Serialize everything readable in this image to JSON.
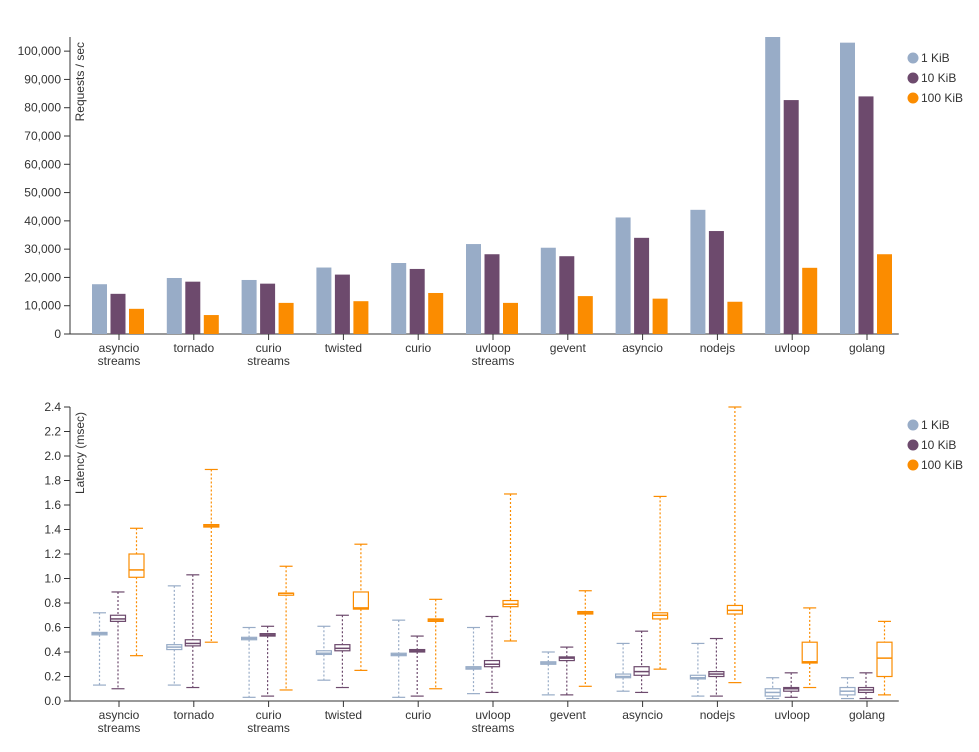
{
  "colors": {
    "s1": "#98acc7",
    "s2": "#6d4a6d",
    "s3": "#fb8c00",
    "axis": "#333333"
  },
  "chart_data": [
    {
      "type": "bar",
      "ylabel": "Requests / sec",
      "ylim": [
        0,
        105000
      ],
      "yticks": [
        0,
        10000,
        20000,
        30000,
        40000,
        50000,
        60000,
        70000,
        80000,
        90000,
        100000
      ],
      "ytick_labels": [
        "0",
        "10,000",
        "20,000",
        "30,000",
        "40,000",
        "50,000",
        "60,000",
        "70,000",
        "80,000",
        "90,000",
        "100,000"
      ],
      "categories": [
        [
          "asyncio",
          "streams"
        ],
        [
          "tornado"
        ],
        [
          "curio",
          "streams"
        ],
        [
          "twisted"
        ],
        [
          "curio"
        ],
        [
          "uvloop",
          "streams"
        ],
        [
          "gevent"
        ],
        [
          "asyncio"
        ],
        [
          "nodejs"
        ],
        [
          "uvloop"
        ],
        [
          "golang"
        ]
      ],
      "legend_position": "top-right",
      "series": [
        {
          "name": "1 KiB",
          "values": [
            17600,
            19800,
            19100,
            23500,
            25100,
            31800,
            30500,
            41200,
            43900,
            105000,
            103000
          ]
        },
        {
          "name": "10 KiB",
          "values": [
            14200,
            18500,
            17800,
            21000,
            23000,
            28200,
            27500,
            34000,
            36400,
            82700,
            84000
          ]
        },
        {
          "name": "100 KiB",
          "values": [
            8900,
            6700,
            11000,
            11600,
            14500,
            11000,
            13400,
            12500,
            11400,
            23400,
            28200
          ]
        }
      ]
    },
    {
      "type": "boxplot",
      "ylabel": "Latency (msec)",
      "ylim": [
        0,
        2.4
      ],
      "yticks": [
        0,
        0.2,
        0.4,
        0.6,
        0.8,
        1.0,
        1.2,
        1.4,
        1.6,
        1.8,
        2.0,
        2.2,
        2.4
      ],
      "ytick_labels": [
        "0.0",
        "0.2",
        "0.4",
        "0.6",
        "0.8",
        "1.0",
        "1.2",
        "1.4",
        "1.6",
        "1.8",
        "2.0",
        "2.2",
        "2.4"
      ],
      "categories": [
        [
          "asyncio",
          "streams"
        ],
        [
          "tornado"
        ],
        [
          "curio",
          "streams"
        ],
        [
          "twisted"
        ],
        [
          "curio"
        ],
        [
          "uvloop",
          "streams"
        ],
        [
          "gevent"
        ],
        [
          "asyncio"
        ],
        [
          "nodejs"
        ],
        [
          "uvloop"
        ],
        [
          "golang"
        ]
      ],
      "legend_position": "top-right",
      "series": [
        {
          "name": "1 KiB",
          "boxes": [
            {
              "min": 0.13,
              "q1": 0.54,
              "median": 0.55,
              "q3": 0.56,
              "max": 0.72
            },
            {
              "min": 0.13,
              "q1": 0.42,
              "median": 0.44,
              "q3": 0.46,
              "max": 0.94
            },
            {
              "min": 0.03,
              "q1": 0.5,
              "median": 0.51,
              "q3": 0.52,
              "max": 0.6
            },
            {
              "min": 0.17,
              "q1": 0.38,
              "median": 0.39,
              "q3": 0.41,
              "max": 0.61
            },
            {
              "min": 0.03,
              "q1": 0.37,
              "median": 0.38,
              "q3": 0.39,
              "max": 0.66
            },
            {
              "min": 0.06,
              "q1": 0.26,
              "median": 0.27,
              "q3": 0.28,
              "max": 0.6
            },
            {
              "min": 0.05,
              "q1": 0.3,
              "median": 0.31,
              "q3": 0.32,
              "max": 0.4
            },
            {
              "min": 0.08,
              "q1": 0.19,
              "median": 0.2,
              "q3": 0.22,
              "max": 0.47
            },
            {
              "min": 0.04,
              "q1": 0.18,
              "median": 0.19,
              "q3": 0.21,
              "max": 0.47
            },
            {
              "min": 0.02,
              "q1": 0.04,
              "median": 0.07,
              "q3": 0.1,
              "max": 0.19
            },
            {
              "min": 0.02,
              "q1": 0.05,
              "median": 0.08,
              "q3": 0.11,
              "max": 0.19
            }
          ]
        },
        {
          "name": "10 KiB",
          "boxes": [
            {
              "min": 0.1,
              "q1": 0.65,
              "median": 0.67,
              "q3": 0.7,
              "max": 0.89
            },
            {
              "min": 0.11,
              "q1": 0.45,
              "median": 0.47,
              "q3": 0.5,
              "max": 1.03
            },
            {
              "min": 0.04,
              "q1": 0.53,
              "median": 0.54,
              "q3": 0.55,
              "max": 0.61
            },
            {
              "min": 0.11,
              "q1": 0.41,
              "median": 0.43,
              "q3": 0.46,
              "max": 0.7
            },
            {
              "min": 0.04,
              "q1": 0.4,
              "median": 0.41,
              "q3": 0.42,
              "max": 0.53
            },
            {
              "min": 0.07,
              "q1": 0.28,
              "median": 0.3,
              "q3": 0.33,
              "max": 0.69
            },
            {
              "min": 0.05,
              "q1": 0.33,
              "median": 0.35,
              "q3": 0.36,
              "max": 0.44
            },
            {
              "min": 0.07,
              "q1": 0.21,
              "median": 0.24,
              "q3": 0.28,
              "max": 0.57
            },
            {
              "min": 0.04,
              "q1": 0.2,
              "median": 0.22,
              "q3": 0.24,
              "max": 0.51
            },
            {
              "min": 0.03,
              "q1": 0.08,
              "median": 0.1,
              "q3": 0.11,
              "max": 0.23
            },
            {
              "min": 0.02,
              "q1": 0.07,
              "median": 0.09,
              "q3": 0.11,
              "max": 0.23
            }
          ]
        },
        {
          "name": "100 KiB",
          "boxes": [
            {
              "min": 0.37,
              "q1": 1.01,
              "median": 1.07,
              "q3": 1.2,
              "max": 1.41
            },
            {
              "min": 0.48,
              "q1": 1.42,
              "median": 1.43,
              "q3": 1.44,
              "max": 1.89
            },
            {
              "min": 0.09,
              "q1": 0.87,
              "median": 0.88,
              "q3": 0.88,
              "max": 1.1
            },
            {
              "min": 0.25,
              "q1": 0.75,
              "median": 0.76,
              "q3": 0.89,
              "max": 1.28
            },
            {
              "min": 0.1,
              "q1": 0.65,
              "median": 0.66,
              "q3": 0.67,
              "max": 0.83
            },
            {
              "min": 0.49,
              "q1": 0.77,
              "median": 0.79,
              "q3": 0.82,
              "max": 1.69
            },
            {
              "min": 0.12,
              "q1": 0.71,
              "median": 0.72,
              "q3": 0.73,
              "max": 0.9
            },
            {
              "min": 0.26,
              "q1": 0.67,
              "median": 0.7,
              "q3": 0.72,
              "max": 1.67
            },
            {
              "min": 0.15,
              "q1": 0.71,
              "median": 0.74,
              "q3": 0.78,
              "max": 2.4
            },
            {
              "min": 0.11,
              "q1": 0.31,
              "median": 0.32,
              "q3": 0.48,
              "max": 0.76
            },
            {
              "min": 0.05,
              "q1": 0.2,
              "median": 0.35,
              "q3": 0.48,
              "max": 0.65
            }
          ]
        }
      ]
    }
  ]
}
